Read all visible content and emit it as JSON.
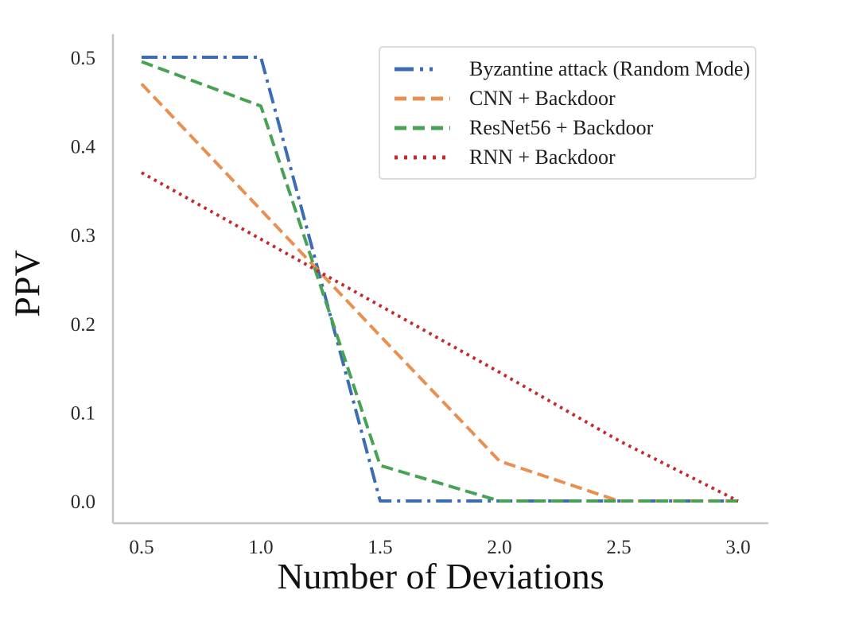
{
  "figure": {
    "title": "",
    "background_color": "#ffffff",
    "spine_color": "#c6c6c6",
    "tick_text_color": "#2b2b2b"
  },
  "chart_data": {
    "type": "line",
    "title": "",
    "xlabel": "Number of Deviations",
    "ylabel": "PPV",
    "x": [
      0.5,
      1.0,
      1.5,
      2.0,
      2.5,
      3.0
    ],
    "x_tick_labels": [
      "0.5",
      "1.0",
      "1.5",
      "2.0",
      "2.5",
      "3.0"
    ],
    "y_ticks": [
      0.0,
      0.1,
      0.2,
      0.3,
      0.4,
      0.5
    ],
    "y_tick_labels": [
      "0.0",
      "0.1",
      "0.2",
      "0.3",
      "0.4",
      "0.5"
    ],
    "xlim": [
      0.38,
      3.12
    ],
    "ylim": [
      -0.025,
      0.525
    ],
    "grid": false,
    "legend_position": "upper right",
    "series": [
      {
        "name": "Byzantine attack (Random Mode)",
        "color": "#3b6cb4",
        "linestyle": "dashdot",
        "values": [
          0.5,
          0.5,
          0.0,
          0.0,
          0.0,
          0.0
        ]
      },
      {
        "name": "CNN + Backdoor",
        "color": "#e98f51",
        "linestyle": "dashed",
        "values": [
          0.47,
          0.328,
          0.186,
          0.045,
          0.0,
          0.0
        ]
      },
      {
        "name": "ResNet56 + Backdoor",
        "color": "#47a254",
        "linestyle": "dashed",
        "values": [
          0.495,
          0.445,
          0.04,
          0.0,
          0.0,
          0.0
        ]
      },
      {
        "name": "RNN + Backdoor",
        "color": "#c42a2d",
        "linestyle": "dotted",
        "values": [
          0.37,
          0.295,
          0.22,
          0.145,
          0.068,
          0.0
        ]
      }
    ]
  }
}
